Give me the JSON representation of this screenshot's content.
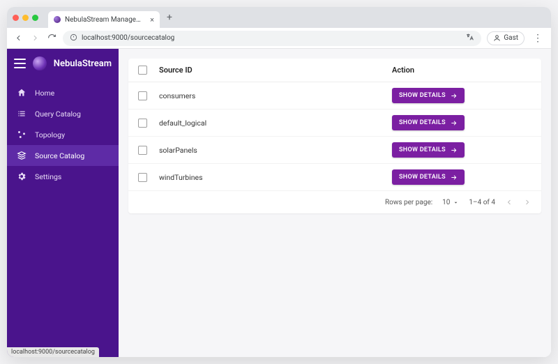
{
  "browser": {
    "tab_title": "NebulaStream Management",
    "url": "localhost:9000/sourcecatalog",
    "guest_label": "Gast",
    "status_text": "localhost:9000/sourcecatalog"
  },
  "brand": {
    "name": "NebulaStream"
  },
  "colors": {
    "sidebar_bg": "#4a148c",
    "sidebar_active_bg": "#5e2ba6",
    "button_bg": "#7b1fa2",
    "content_bg": "#f6f6f8"
  },
  "nav": {
    "items": [
      {
        "key": "home",
        "label": "Home",
        "icon": "home",
        "active": false
      },
      {
        "key": "query-catalog",
        "label": "Query Catalog",
        "icon": "list",
        "active": false
      },
      {
        "key": "topology",
        "label": "Topology",
        "icon": "nodes",
        "active": false
      },
      {
        "key": "source-catalog",
        "label": "Source Catalog",
        "icon": "layers",
        "active": true
      },
      {
        "key": "settings",
        "label": "Settings",
        "icon": "gear",
        "active": false
      }
    ]
  },
  "table": {
    "columns": {
      "source_id": "Source ID",
      "action": "Action"
    },
    "action_button_label": "SHOW DETAILS",
    "rows": [
      {
        "source_id": "consumers"
      },
      {
        "source_id": "default_logical"
      },
      {
        "source_id": "solarPanels"
      },
      {
        "source_id": "windTurbines"
      }
    ],
    "pagination": {
      "rows_per_page_label": "Rows per page:",
      "rows_per_page_value": "10",
      "range_text": "1–4 of 4"
    }
  }
}
